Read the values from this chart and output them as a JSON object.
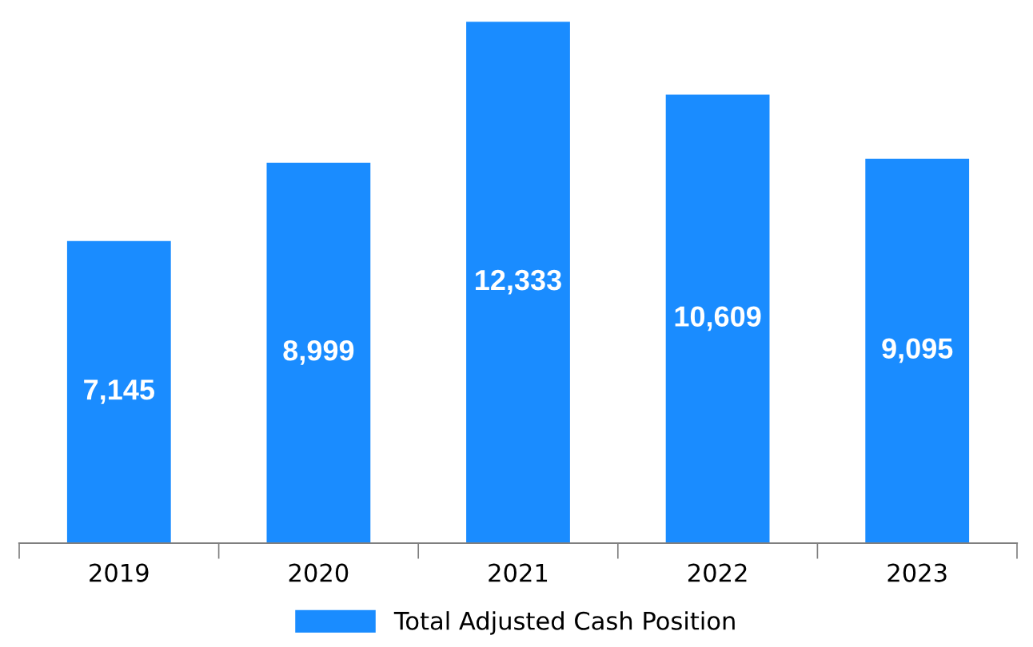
{
  "chart_data": {
    "type": "bar",
    "categories": [
      "2019",
      "2020",
      "2021",
      "2022",
      "2023"
    ],
    "series": [
      {
        "name": "Total Adjusted Cash Position",
        "color": "#1a8cff",
        "values": [
          7145,
          8999,
          12333,
          10609,
          9095
        ],
        "value_labels": [
          "7,145",
          "8,999",
          "12,333",
          "10,609",
          "9,095"
        ]
      }
    ],
    "legend": "bottom",
    "grid": false
  }
}
